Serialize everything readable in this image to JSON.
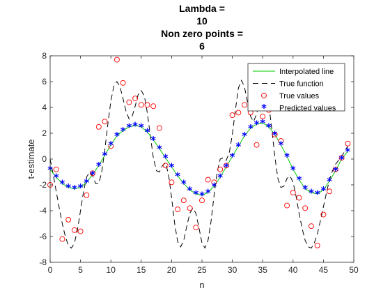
{
  "chart_data": {
    "type": "line",
    "title": [
      "Lambda =",
      "10",
      "Non zero points =",
      "6"
    ],
    "xlabel": "n",
    "ylabel": "t-estimate",
    "xlim": [
      0,
      50
    ],
    "ylim": [
      -8,
      8
    ],
    "x_ticks": [
      0,
      5,
      10,
      15,
      20,
      25,
      30,
      35,
      40,
      45,
      50
    ],
    "y_ticks": [
      -8,
      -6,
      -4,
      -2,
      0,
      2,
      4,
      6,
      8
    ],
    "box": true,
    "grid": false,
    "legend": {
      "location": "top-right",
      "box": true
    },
    "series": [
      {
        "name": "Interpolated line",
        "style": "solid-line",
        "color": "#00cc00",
        "x": [
          0,
          1,
          2,
          3,
          4,
          5,
          6,
          7,
          8,
          9,
          10,
          11,
          12,
          13,
          14,
          15,
          16,
          17,
          18,
          19,
          20,
          21,
          22,
          23,
          24,
          25,
          26,
          27,
          28,
          29,
          30,
          31,
          32,
          33,
          34,
          35,
          36,
          37,
          38,
          39,
          40,
          41,
          42,
          43,
          44,
          45,
          46,
          47,
          48,
          49
        ],
        "y": [
          -0.8,
          -1.4,
          -1.9,
          -2.2,
          -2.3,
          -2.2,
          -1.8,
          -1.2,
          -0.5,
          0.3,
          1.1,
          1.8,
          2.2,
          2.5,
          2.6,
          2.5,
          2.1,
          1.5,
          0.8,
          0.1,
          -0.6,
          -1.3,
          -1.9,
          -2.4,
          -2.7,
          -2.8,
          -2.6,
          -2.1,
          -1.4,
          -0.6,
          0.2,
          1.0,
          1.8,
          2.4,
          2.7,
          2.8,
          2.5,
          1.9,
          1.1,
          0.2,
          -0.8,
          -1.6,
          -2.3,
          -2.6,
          -2.7,
          -2.4,
          -1.7,
          -0.9,
          0.0,
          0.6
        ]
      },
      {
        "name": "True function",
        "style": "dashed-line",
        "color": "#000000",
        "x": [
          0,
          0.5,
          1,
          1.5,
          2,
          2.5,
          3,
          3.5,
          4,
          4.5,
          5,
          5.5,
          6,
          6.5,
          7,
          7.5,
          8,
          8.5,
          9,
          9.5,
          10,
          10.5,
          11,
          11.5,
          12,
          12.5,
          13,
          13.5,
          14,
          14.5,
          15,
          15.5,
          16,
          16.5,
          17,
          17.5,
          18,
          18.5,
          19,
          19.5,
          20,
          20.5,
          21,
          21.5,
          22,
          22.5,
          23,
          23.5,
          24,
          24.5,
          25,
          25.5,
          26,
          26.5,
          27,
          27.5,
          28,
          28.5,
          29,
          29.5,
          30,
          30.5,
          31,
          31.5,
          32,
          32.5,
          33,
          33.5,
          34,
          34.5,
          35,
          35.5,
          36,
          36.5,
          37,
          37.5,
          38,
          38.5,
          39,
          39.5,
          40,
          40.5,
          41,
          41.5,
          42,
          42.5,
          43,
          43.5,
          44,
          44.5,
          45,
          45.5,
          46,
          46.5,
          47,
          47.5,
          48,
          48.5,
          49
        ],
        "y": [
          0,
          -1.2,
          -2.5,
          -3.8,
          -5.0,
          -6.0,
          -6.7,
          -6.9,
          -6.5,
          -5.5,
          -4.0,
          -2.5,
          -1.4,
          -1.0,
          -1.3,
          -1.9,
          -1.9,
          -1.0,
          0.7,
          2.7,
          4.5,
          5.7,
          6.0,
          5.6,
          4.7,
          3.7,
          3.1,
          3.3,
          4.1,
          5.0,
          5.3,
          4.9,
          3.6,
          1.8,
          0.1,
          -0.9,
          -1.0,
          -0.5,
          -0.3,
          -1.2,
          -3.0,
          -5.0,
          -6.4,
          -6.8,
          -6.3,
          -5.2,
          -4.2,
          -3.8,
          -4.2,
          -5.3,
          -6.5,
          -6.9,
          -6.3,
          -4.8,
          -2.8,
          -1.0,
          0,
          0.1,
          -0.1,
          0.5,
          1.9,
          3.8,
          5.5,
          6.1,
          5.6,
          4.4,
          3.3,
          2.9,
          3.5,
          4.6,
          5.5,
          5.5,
          4.3,
          2.3,
          0.2,
          -1.5,
          -2.2,
          -2.1,
          -1.5,
          -1.3,
          -1.8,
          -2.9,
          -4.2,
          -5.4,
          -6.3,
          -6.8,
          -6.9,
          -6.5,
          -5.8,
          -4.8,
          -3.7,
          -2.6,
          -1.6,
          -0.9,
          -0.4,
          -0.1,
          0.2,
          0.6,
          1.0
        ]
      },
      {
        "name": "True values",
        "style": "circle-markers",
        "color": "#ff0000",
        "x": [
          0,
          1,
          2,
          3,
          4,
          5,
          6,
          7,
          8,
          9,
          10,
          11,
          12,
          13,
          14,
          15,
          16,
          17,
          18,
          19,
          20,
          21,
          22,
          23,
          24,
          25,
          26,
          27,
          28,
          29,
          30,
          31,
          32,
          33,
          34,
          35,
          36,
          37,
          38,
          39,
          40,
          41,
          42,
          43,
          44,
          45,
          46,
          47,
          48,
          49
        ],
        "y": [
          -2.0,
          -0.8,
          -6.2,
          -4.7,
          -5.5,
          -5.6,
          -2.8,
          -1.1,
          2.5,
          2.9,
          1.0,
          7.7,
          5.9,
          4.4,
          4.7,
          4.2,
          4.2,
          4.1,
          2.4,
          -0.5,
          -1.8,
          -3.9,
          -3.2,
          -3.8,
          -5.3,
          -3.2,
          -1.6,
          -1.8,
          -0.8,
          -0.5,
          3.4,
          3.6,
          4.2,
          3.6,
          1.1,
          3.3,
          3.8,
          1.9,
          1.4,
          -3.6,
          -2.6,
          -3.0,
          -3.8,
          -5.2,
          -6.7,
          -4.3,
          -2.5,
          -0.8,
          0.1,
          1.2
        ]
      },
      {
        "name": "Predicted values",
        "style": "star-markers",
        "color": "#0000ff",
        "x": [
          0,
          1,
          2,
          3,
          4,
          5,
          6,
          7,
          8,
          9,
          10,
          11,
          12,
          13,
          14,
          15,
          16,
          17,
          18,
          19,
          20,
          21,
          22,
          23,
          24,
          25,
          26,
          27,
          28,
          29,
          30,
          31,
          32,
          33,
          34,
          35,
          36,
          37,
          38,
          39,
          40,
          41,
          42,
          43,
          44,
          45,
          46,
          47,
          48,
          49
        ],
        "y": [
          -0.8,
          -1.4,
          -1.9,
          -2.2,
          -2.3,
          -2.2,
          -1.8,
          -1.2,
          -0.5,
          0.3,
          1.1,
          1.8,
          2.2,
          2.5,
          2.6,
          2.5,
          2.1,
          1.5,
          0.8,
          0.1,
          -0.6,
          -1.3,
          -1.9,
          -2.4,
          -2.7,
          -2.8,
          -2.6,
          -2.1,
          -1.4,
          -0.6,
          0.2,
          1.0,
          1.8,
          2.4,
          2.7,
          2.8,
          2.5,
          1.9,
          1.1,
          0.2,
          -0.8,
          -1.6,
          -2.3,
          -2.6,
          -2.7,
          -2.4,
          -1.7,
          -0.9,
          0.0,
          0.6
        ]
      }
    ]
  }
}
